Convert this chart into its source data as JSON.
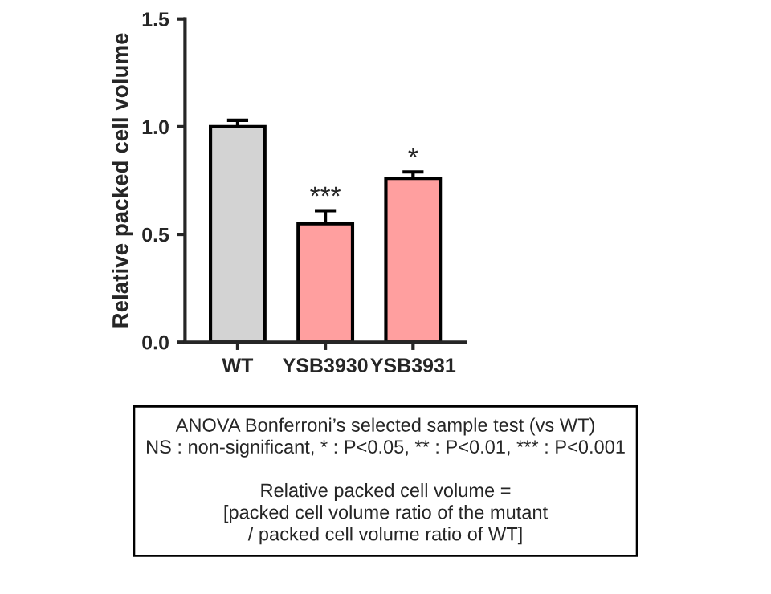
{
  "chart_data": {
    "type": "bar",
    "categories": [
      "WT",
      "YSB3930",
      "YSB3931"
    ],
    "values": [
      1.0,
      0.55,
      0.76
    ],
    "colors": [
      "#d3d3d3",
      "#ff9f9f",
      "#ff9f9f"
    ],
    "errors": [
      [
        1.0,
        1.03
      ],
      [
        0.55,
        0.61
      ],
      [
        0.76,
        0.79
      ]
    ],
    "ylabel": "Relative packed cell volume",
    "ylim": [
      0,
      1.5
    ],
    "yticks": [
      {
        "value": 0,
        "label": "0.0"
      },
      {
        "value": 0.5,
        "label": "0.5"
      },
      {
        "value": 1.0,
        "label": "1.0"
      },
      {
        "value": 1.5,
        "label": "1.5"
      }
    ],
    "annotations": [
      {
        "text": "***",
        "x": "YSB3930",
        "y": 0.61
      },
      {
        "text": "*",
        "x": "YSB3931",
        "y": 0.79
      },
      "ANOVA Bonferroni’s selected sample test (vs WT)\nNS : non-significant, * : P<0.05, ** : P<0.01, *** : P<0.001\n\nRelative packed cell volume =\n[packed cell volume ratio of the mutant\n/ packed cell volume ratio of WT]"
    ],
    "grid": false,
    "legend": false
  }
}
